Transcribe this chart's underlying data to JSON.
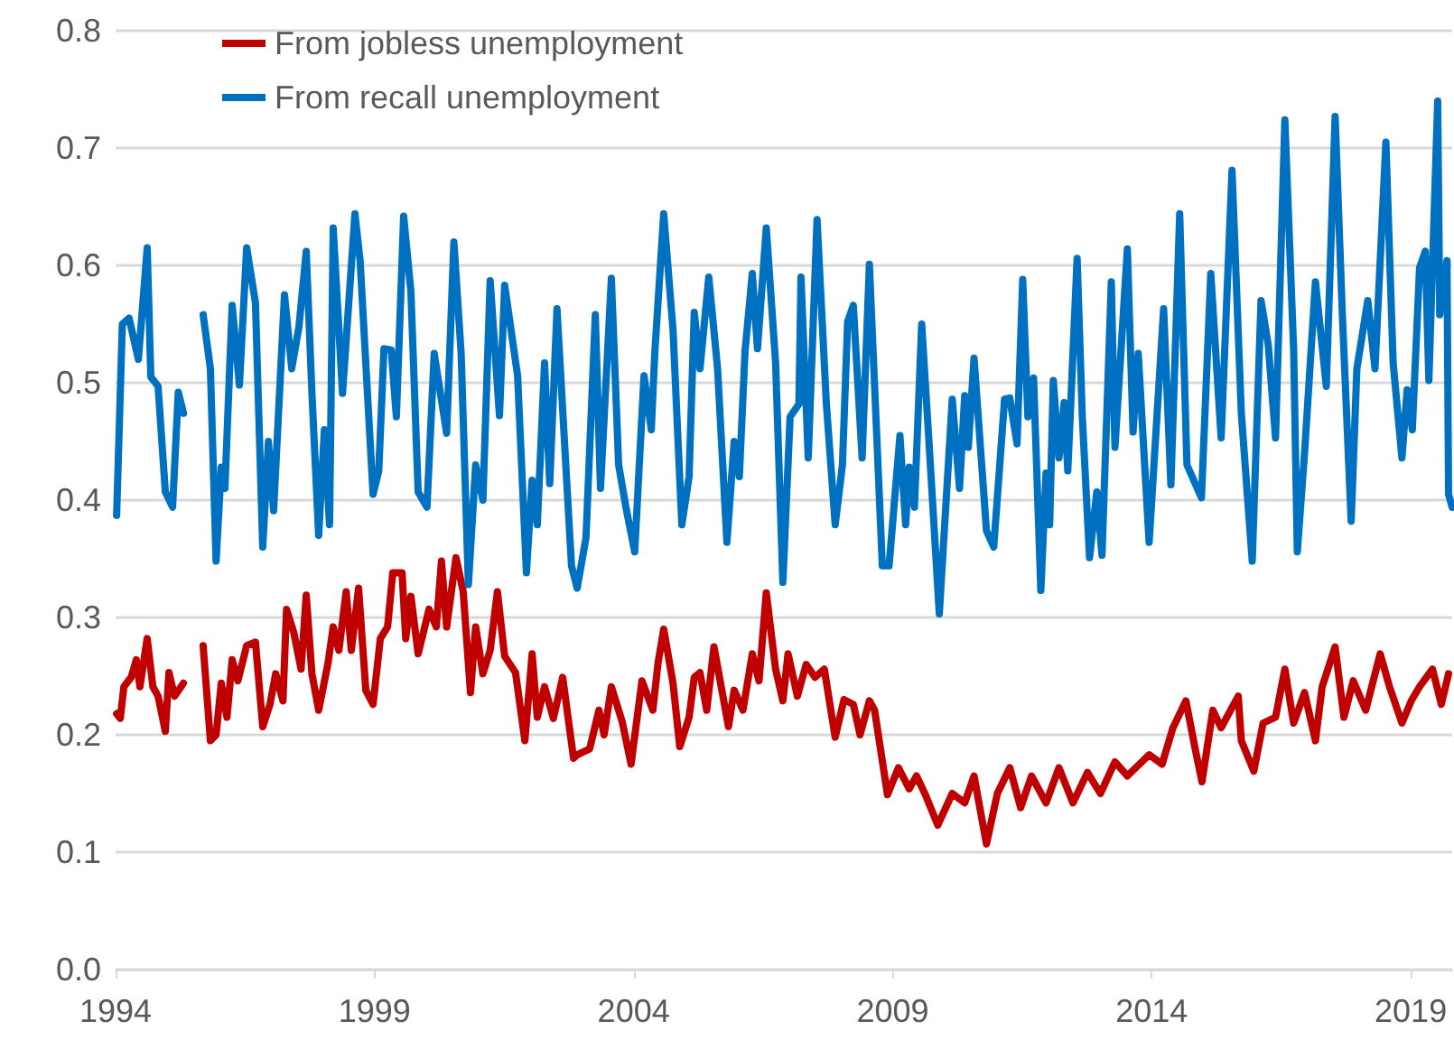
{
  "chart_data": {
    "type": "line",
    "xlim": [
      1994,
      2019.8
    ],
    "xticks": [
      1994,
      1999,
      2004,
      2009,
      2014,
      2019
    ],
    "ylim": [
      0,
      0.8
    ],
    "yticks": [
      {
        "value": 0,
        "label": "0.0"
      },
      {
        "value": 0.1,
        "label": "0.1"
      },
      {
        "value": 0.2,
        "label": "0.2"
      },
      {
        "value": 0.3,
        "label": "0.3"
      },
      {
        "value": 0.4,
        "label": "0.4"
      },
      {
        "value": 0.5,
        "label": "0.5"
      },
      {
        "value": 0.6,
        "label": "0.6"
      },
      {
        "value": 0.7,
        "label": "0.7"
      },
      {
        "value": 0.8,
        "label": "0.8"
      }
    ],
    "grid": "y",
    "legend": "top left",
    "marker": "none",
    "line_style": "solid",
    "series": [
      {
        "name": "From jobless unemployment",
        "color": "#c00000",
        "x": [
          1994.02,
          1994.09,
          1994.16,
          1994.3,
          1994.4,
          1994.47,
          1994.61,
          1994.72,
          1994.82,
          1994.96,
          1995.03,
          1995.14,
          1995.31,
          1995.6,
          1995.69,
          1995.83,
          1995.94,
          1996.04,
          1996.15,
          1996.25,
          1996.36,
          1996.53,
          1996.7,
          1996.84,
          1996.98,
          1997.09,
          1997.23,
          1997.3,
          1997.44,
          1997.58,
          1997.68,
          1997.79,
          1997.92,
          1998.1,
          1998.2,
          1998.31,
          1998.45,
          1998.55,
          1998.69,
          1998.83,
          1998.97,
          1999.11,
          1999.25,
          1999.35,
          1999.53,
          1999.6,
          1999.7,
          1999.84,
          2000.05,
          2000.19,
          2000.29,
          2000.39,
          2000.57,
          2000.71,
          2000.85,
          2000.95,
          2001.09,
          2001.23,
          2001.37,
          2001.51,
          2001.72,
          2001.9,
          2002.04,
          2002.14,
          2002.28,
          2002.45,
          2002.63,
          2002.84,
          2002.91,
          2003.15,
          2003.33,
          2003.43,
          2003.57,
          2003.78,
          2003.95,
          2004.16,
          2004.37,
          2004.47,
          2004.58,
          2004.76,
          2004.89,
          2005.07,
          2005.17,
          2005.28,
          2005.41,
          2005.55,
          2005.69,
          2005.83,
          2005.94,
          2006.11,
          2006.29,
          2006.42,
          2006.56,
          2006.74,
          2006.88,
          2006.98,
          2007.16,
          2007.33,
          2007.5,
          2007.68,
          2007.89,
          2008.06,
          2008.24,
          2008.37,
          2008.55,
          2008.65,
          2008.9,
          2009.11,
          2009.32,
          2009.46,
          2009.63,
          2009.87,
          2010.15,
          2010.39,
          2010.57,
          2010.81,
          2011.02,
          2011.26,
          2011.47,
          2011.68,
          2011.96,
          2012.21,
          2012.48,
          2012.76,
          2013.01,
          2013.29,
          2013.53,
          2013.95,
          2014.2,
          2014.41,
          2014.66,
          2014.83,
          2014.97,
          2015.18,
          2015.34,
          2015.67,
          2015.73,
          2015.97,
          2016.15,
          2016.39,
          2016.57,
          2016.74,
          2016.95,
          2017.16,
          2017.29,
          2017.54,
          2017.71,
          2017.89,
          2018.13,
          2018.41,
          2018.59,
          2018.83,
          2019.01,
          2019.17,
          2019.42,
          2019.59,
          2019.73
        ],
        "values": [
          0.218,
          0.214,
          0.241,
          0.249,
          0.264,
          0.241,
          0.282,
          0.241,
          0.233,
          0.203,
          0.253,
          0.233,
          0.244,
          null,
          0.276,
          0.195,
          0.2,
          0.244,
          0.215,
          0.264,
          0.246,
          0.276,
          0.279,
          0.207,
          0.226,
          0.252,
          0.229,
          0.307,
          0.287,
          0.256,
          0.319,
          0.252,
          0.221,
          0.261,
          0.292,
          0.272,
          0.322,
          0.272,
          0.325,
          0.238,
          0.226,
          0.282,
          0.292,
          0.338,
          0.338,
          0.282,
          0.318,
          0.269,
          0.307,
          0.292,
          0.348,
          0.292,
          0.351,
          0.322,
          0.236,
          0.292,
          0.252,
          0.272,
          0.322,
          0.267,
          0.253,
          0.195,
          0.269,
          0.215,
          0.241,
          0.214,
          0.249,
          0.18,
          0.183,
          0.188,
          0.221,
          0.2,
          0.241,
          0.211,
          0.175,
          0.246,
          0.221,
          0.261,
          0.29,
          0.244,
          0.19,
          0.215,
          0.249,
          0.253,
          0.221,
          0.275,
          0.241,
          0.207,
          0.238,
          0.221,
          0.269,
          0.246,
          0.321,
          0.256,
          0.229,
          0.269,
          0.233,
          0.26,
          0.249,
          0.256,
          0.198,
          0.23,
          0.226,
          0.2,
          0.229,
          0.221,
          0.149,
          0.172,
          0.154,
          0.165,
          0.149,
          0.123,
          0.15,
          0.142,
          0.165,
          0.107,
          0.15,
          0.172,
          0.138,
          0.165,
          0.142,
          0.172,
          0.142,
          0.168,
          0.15,
          0.177,
          0.165,
          0.183,
          0.175,
          0.206,
          0.229,
          0.19,
          0.16,
          0.221,
          0.206,
          0.233,
          0.195,
          0.169,
          0.21,
          0.215,
          0.256,
          0.21,
          0.236,
          0.195,
          0.241,
          0.275,
          0.215,
          0.246,
          0.221,
          0.269,
          0.241,
          0.21,
          0.229,
          0.241,
          0.256,
          0.226,
          0.252
        ]
      },
      {
        "name": "From recall unemployment",
        "color": "#0070c0",
        "x": [
          1994.02,
          1994.13,
          1994.26,
          1994.44,
          1994.61,
          1994.68,
          1994.82,
          1994.96,
          1995.1,
          1995.21,
          1995.31,
          1995.6,
          1995.69,
          1995.83,
          1995.94,
          1996.04,
          1996.11,
          1996.25,
          1996.39,
          1996.53,
          1996.7,
          1996.84,
          1996.95,
          1997.05,
          1997.26,
          1997.4,
          1997.54,
          1997.68,
          1997.79,
          1997.92,
          1998.03,
          1998.13,
          1998.2,
          1998.38,
          1998.62,
          1998.72,
          1998.97,
          1999.08,
          1999.18,
          1999.32,
          1999.42,
          1999.56,
          1999.7,
          1999.84,
          2000.01,
          2000.15,
          2000.39,
          2000.53,
          2000.67,
          2000.81,
          2000.95,
          2001.09,
          2001.23,
          2001.41,
          2001.51,
          2001.76,
          2001.93,
          2002.04,
          2002.14,
          2002.28,
          2002.38,
          2002.52,
          2002.8,
          2002.91,
          2003.08,
          2003.26,
          2003.36,
          2003.57,
          2003.71,
          2003.85,
          2004.02,
          2004.2,
          2004.34,
          2004.41,
          2004.58,
          2004.76,
          2004.93,
          2005.07,
          2005.17,
          2005.28,
          2005.45,
          2005.62,
          2005.8,
          2005.94,
          2006.04,
          2006.15,
          2006.29,
          2006.39,
          2006.56,
          2006.74,
          2006.88,
          2007.02,
          2007.19,
          2007.23,
          2007.37,
          2007.54,
          2007.72,
          2007.89,
          2008.03,
          2008.13,
          2008.24,
          2008.41,
          2008.55,
          2008.8,
          2008.93,
          2009.14,
          2009.25,
          2009.32,
          2009.42,
          2009.56,
          2009.7,
          2009.9,
          2010.15,
          2010.29,
          2010.39,
          2010.46,
          2010.57,
          2010.81,
          2010.95,
          2011.16,
          2011.26,
          2011.4,
          2011.51,
          2011.61,
          2011.72,
          2011.86,
          2011.96,
          2012.03,
          2012.1,
          2012.21,
          2012.31,
          2012.38,
          2012.56,
          2012.66,
          2012.8,
          2012.94,
          2013.04,
          2013.22,
          2013.29,
          2013.53,
          2013.64,
          2013.74,
          2013.95,
          2014.23,
          2014.37,
          2014.54,
          2014.68,
          2014.96,
          2015.14,
          2015.34,
          2015.55,
          2015.73,
          2015.94,
          2016.11,
          2016.25,
          2016.39,
          2016.57,
          2016.74,
          2016.81,
          2016.95,
          2017.16,
          2017.37,
          2017.54,
          2017.68,
          2017.85,
          2017.96,
          2018.17,
          2018.31,
          2018.52,
          2018.66,
          2018.83,
          2018.93,
          2019.03,
          2019.17,
          2019.28,
          2019.35,
          2019.52,
          2019.56,
          2019.7,
          2019.73,
          2019.8
        ],
        "values": [
          0.387,
          0.55,
          0.555,
          0.52,
          0.615,
          0.505,
          0.497,
          0.407,
          0.394,
          0.492,
          0.474,
          null,
          0.558,
          0.512,
          0.348,
          0.428,
          0.41,
          0.566,
          0.498,
          0.615,
          0.568,
          0.36,
          0.45,
          0.391,
          0.575,
          0.512,
          0.548,
          0.612,
          0.491,
          0.37,
          0.46,
          0.379,
          0.632,
          0.491,
          0.644,
          0.604,
          0.405,
          0.425,
          0.529,
          0.528,
          0.471,
          0.642,
          0.578,
          0.407,
          0.394,
          0.525,
          0.457,
          0.62,
          0.525,
          0.328,
          0.43,
          0.4,
          0.587,
          0.472,
          0.583,
          0.506,
          0.338,
          0.417,
          0.379,
          0.517,
          0.414,
          0.563,
          0.344,
          0.325,
          0.368,
          0.558,
          0.41,
          0.589,
          0.43,
          0.394,
          0.356,
          0.506,
          0.46,
          0.527,
          0.644,
          0.545,
          0.379,
          0.42,
          0.56,
          0.512,
          0.59,
          0.512,
          0.364,
          0.45,
          0.42,
          0.527,
          0.593,
          0.529,
          0.632,
          0.517,
          0.33,
          0.471,
          0.482,
          0.59,
          0.436,
          0.639,
          0.482,
          0.379,
          0.43,
          0.552,
          0.566,
          0.436,
          0.601,
          0.344,
          0.344,
          0.455,
          0.379,
          0.428,
          0.394,
          0.55,
          0.45,
          0.303,
          0.486,
          0.41,
          0.489,
          0.445,
          0.521,
          0.374,
          0.36,
          0.486,
          0.487,
          0.448,
          0.588,
          0.471,
          0.504,
          0.323,
          0.423,
          0.379,
          0.502,
          0.436,
          0.483,
          0.425,
          0.606,
          0.471,
          0.351,
          0.407,
          0.353,
          0.586,
          0.445,
          0.614,
          0.458,
          0.525,
          0.364,
          0.563,
          0.413,
          0.644,
          0.43,
          0.402,
          0.593,
          0.453,
          0.681,
          0.474,
          0.348,
          0.57,
          0.532,
          0.453,
          0.724,
          0.528,
          0.356,
          0.44,
          0.586,
          0.497,
          0.727,
          0.558,
          0.382,
          0.512,
          0.57,
          0.512,
          0.705,
          0.517,
          0.436,
          0.494,
          0.46,
          0.598,
          0.612,
          0.502,
          0.74,
          0.558,
          0.604,
          0.405,
          0.394
        ]
      }
    ]
  }
}
